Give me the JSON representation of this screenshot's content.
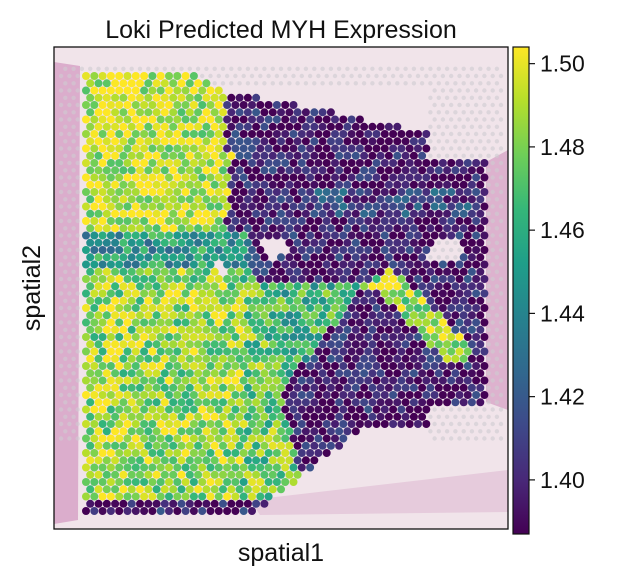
{
  "chart_data": {
    "type": "scatter",
    "title": "Loki Predicted MYH Expression",
    "xlabel": "spatial1",
    "ylabel": "spatial2",
    "colorbar": {
      "colormap": "viridis",
      "min": 1.387,
      "max": 1.504,
      "ticks": [
        "1.40",
        "1.42",
        "1.44",
        "1.46",
        "1.48",
        "1.50"
      ],
      "tick_values": [
        1.4,
        1.42,
        1.44,
        1.46,
        1.48,
        1.5
      ],
      "colors": [
        "#440154",
        "#482878",
        "#3e4989",
        "#31688e",
        "#26828e",
        "#1f9e89",
        "#35b779",
        "#6ece58",
        "#b5de2b",
        "#fde725"
      ]
    },
    "spots": {
      "grid_spacing": 1,
      "cols": 50,
      "rows": 49,
      "regions": [
        {
          "name": "high-expression-left-block",
          "level": 1.495
        },
        {
          "name": "mixed-green-left-band",
          "level": 1.465
        },
        {
          "name": "low-expression-right-block",
          "level": 1.395
        },
        {
          "name": "diagonal-high-band",
          "level": 1.49
        },
        {
          "name": "lower-left-high-block",
          "level": 1.485
        }
      ]
    },
    "background": {
      "tissue_color": "#f1e4ea",
      "stain_color": "#c97fb2",
      "empty_spot_color": "#cfcbd0"
    }
  }
}
